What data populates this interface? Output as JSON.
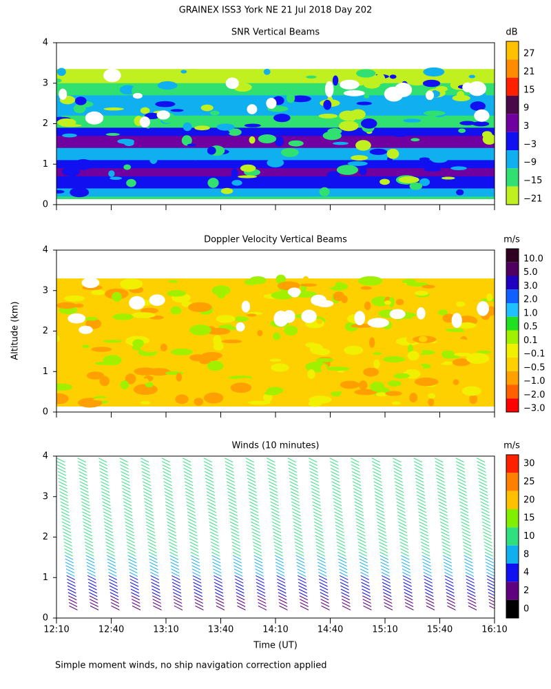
{
  "title": "GRAINEX ISS3 York NE  21 Jul 2018 Day 202",
  "y_axis_label": "Altitude (km)",
  "x_axis_label": "Time (UT)",
  "xticks": [
    "12:10",
    "12:40",
    "13:10",
    "13:40",
    "14:10",
    "14:40",
    "15:10",
    "15:40",
    "16:10"
  ],
  "yticks": [
    "0",
    "1",
    "2",
    "3",
    "4"
  ],
  "footnote": "Simple moment winds, no ship navigation correction applied",
  "panels": [
    {
      "title": "SNR Vertical Beams",
      "unit": "dB",
      "colorbar": {
        "colors": [
          "#ffc000",
          "#ff8c00",
          "#ff2000",
          "#4a0a4a",
          "#7000a0",
          "#1010f0",
          "#10b0f0",
          "#30e070",
          "#c0f020"
        ],
        "labels": [
          "27",
          "21",
          "15",
          "9",
          "3",
          "−3",
          "−9",
          "−15",
          "−21"
        ]
      }
    },
    {
      "title": "Doppler Velocity Vertical Beams",
      "unit": "m/s",
      "colorbar": {
        "colors": [
          "#300020",
          "#500060",
          "#2000c0",
          "#1060ff",
          "#20c0ff",
          "#20e020",
          "#a0f000",
          "#f0f000",
          "#ffd000",
          "#ffa000",
          "#ff6000",
          "#ff0000"
        ],
        "labels": [
          "10.0",
          "5.0",
          "3.0",
          "2.0",
          "1.0",
          "0.5",
          "0.1",
          "−0.1",
          "−0.5",
          "−1.0",
          "−2.0",
          "−3.0"
        ]
      }
    },
    {
      "title": "Winds (10 minutes)",
      "unit": "m/s",
      "colorbar": {
        "colors": [
          "#ff2000",
          "#ff8000",
          "#ffc000",
          "#80f000",
          "#30e080",
          "#10b0f0",
          "#1010f0",
          "#600080",
          "#000000"
        ],
        "labels": [
          "30",
          "25",
          "20",
          "15",
          "10",
          "8",
          "4",
          "2",
          "0"
        ]
      }
    }
  ]
}
